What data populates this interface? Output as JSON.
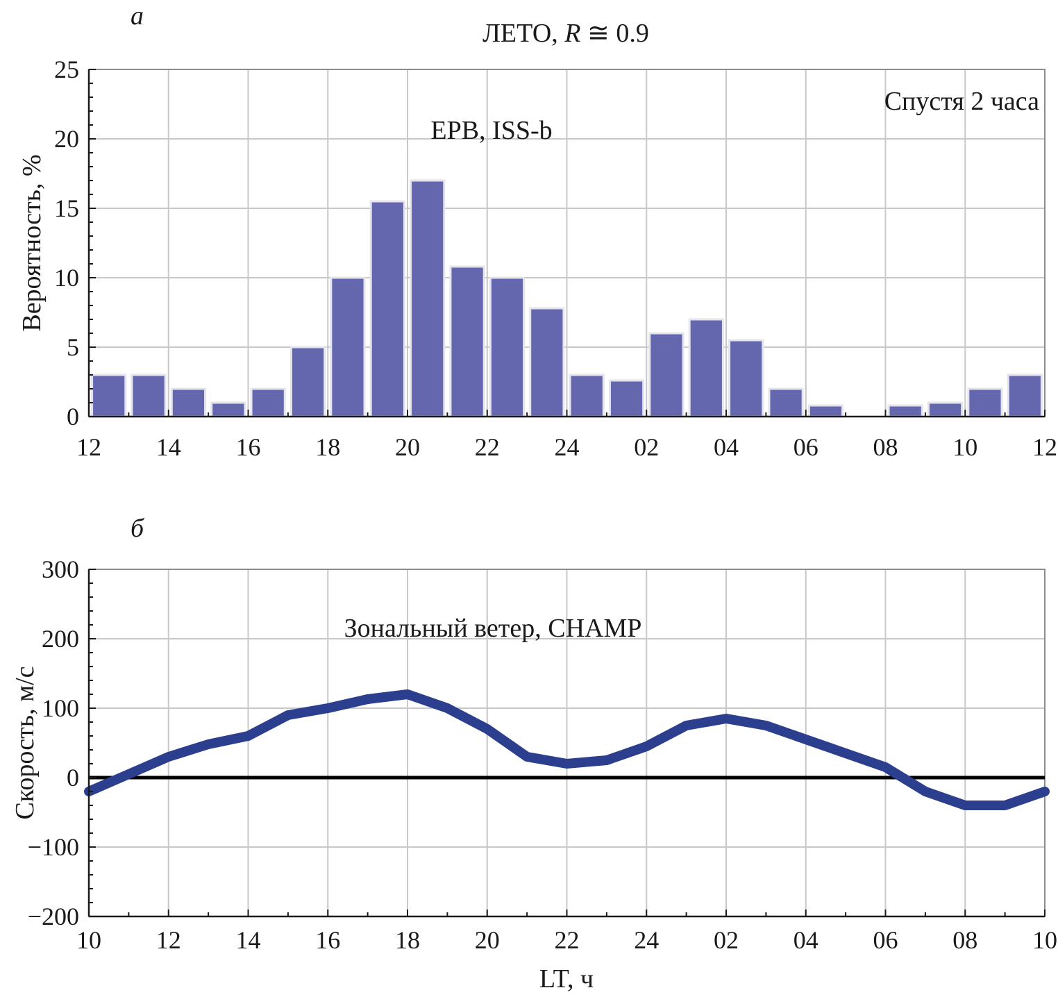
{
  "chart_data": [
    {
      "panel_label": "а",
      "type": "bar",
      "title_prefix": "ЛЕТО, ",
      "title_var": "R",
      "title_suffix": " ≅ 0.9",
      "annotations": [
        "Спустя 2 часа",
        "EPB, ISS-b"
      ],
      "ylabel": "Вероятность, %",
      "xlabel": "",
      "ylim": [
        0,
        25
      ],
      "yticks": [
        "0",
        "5",
        "10",
        "15",
        "20",
        "25"
      ],
      "xticks": [
        "12",
        "14",
        "16",
        "18",
        "20",
        "22",
        "24",
        "02",
        "04",
        "06",
        "08",
        "10",
        "12"
      ],
      "bar_color": "#6467ad",
      "values": [
        3,
        3,
        2,
        1,
        2,
        5,
        10,
        15.5,
        17,
        10.8,
        10,
        7.8,
        3,
        2.6,
        6,
        7,
        5.5,
        2,
        0.8,
        0,
        0.8,
        1,
        2,
        3
      ],
      "grid": true
    },
    {
      "panel_label": "б",
      "type": "line",
      "annotations": [
        "Зональный ветер, CHAMP"
      ],
      "ylabel": "Скорость, м/с",
      "xlabel": "LT, ч",
      "ylim": [
        -200,
        300
      ],
      "yticks": [
        "−200",
        "−100",
        "0",
        "100",
        "200",
        "300"
      ],
      "xticks": [
        "10",
        "12",
        "14",
        "16",
        "18",
        "20",
        "22",
        "24",
        "02",
        "04",
        "06",
        "08",
        "10"
      ],
      "line_color": "#2c3f8f",
      "zero_line_color": "#000000",
      "series": [
        {
          "x": [
            10,
            11,
            12,
            13,
            14,
            15,
            16,
            17,
            18,
            19,
            20,
            21,
            22,
            23,
            24,
            25,
            26,
            27,
            28,
            29,
            30,
            31,
            32,
            33,
            34
          ],
          "values": [
            -20,
            5,
            30,
            48,
            60,
            90,
            100,
            113,
            120,
            100,
            70,
            30,
            20,
            25,
            45,
            75,
            85,
            75,
            55,
            35,
            15,
            -20,
            -40,
            -40,
            -20
          ]
        }
      ],
      "grid": true
    }
  ]
}
